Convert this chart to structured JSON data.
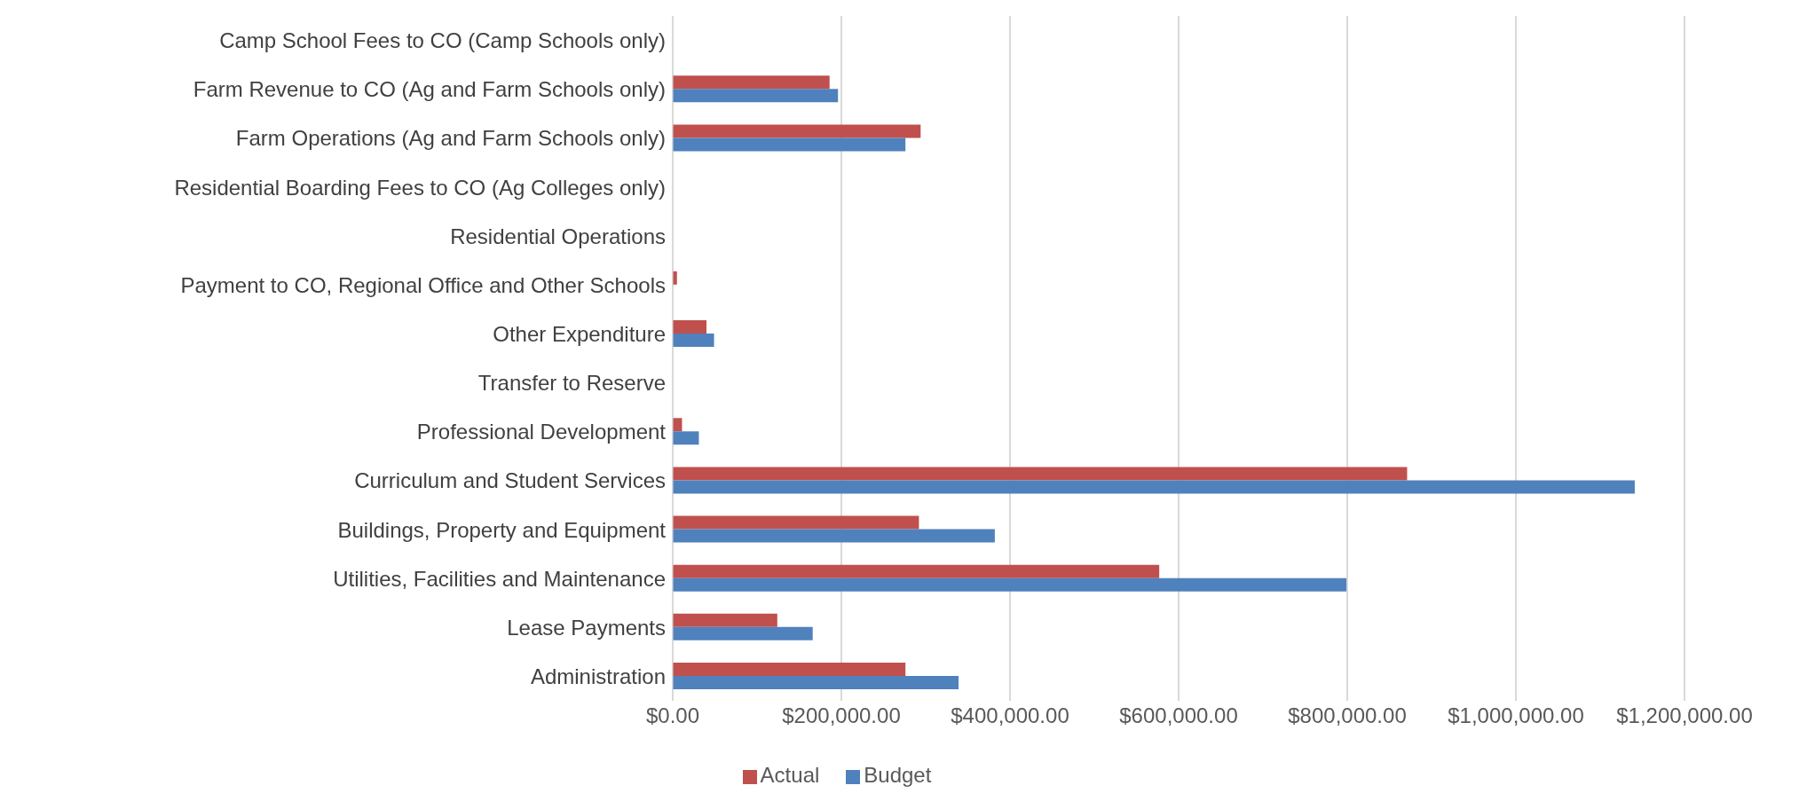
{
  "chart_data": {
    "type": "bar",
    "orientation": "horizontal",
    "categories": [
      "Camp School Fees to CO (Camp Schools only)",
      "Farm Revenue to CO (Ag and Farm Schools only)",
      "Farm Operations (Ag and Farm Schools only)",
      "Residential Boarding Fees to CO (Ag Colleges only)",
      "Residential Operations",
      "Payment to CO, Regional Office and Other Schools",
      "Other Expenditure",
      "Transfer to Reserve",
      "Professional Development",
      "Curriculum and Student Services",
      "Buildings, Property and Equipment",
      "Utilities, Facilities and Maintenance",
      "Lease Payments",
      "Administration"
    ],
    "series": [
      {
        "name": "Actual",
        "color": "#c0504d",
        "values": [
          null,
          186000,
          294000,
          null,
          null,
          5000,
          40000,
          null,
          11000,
          871000,
          292000,
          577000,
          124000,
          276000
        ]
      },
      {
        "name": "Budget",
        "color": "#4f81bd",
        "values": [
          null,
          196000,
          276000,
          null,
          null,
          null,
          49000,
          null,
          31000,
          1141000,
          382000,
          799000,
          166000,
          339000
        ]
      }
    ],
    "xlim": [
      0,
      1200000
    ],
    "xticks": [
      {
        "value": 0,
        "label": "$0.00"
      },
      {
        "value": 200000,
        "label": "$200,000.00"
      },
      {
        "value": 400000,
        "label": "$400,000.00"
      },
      {
        "value": 600000,
        "label": "$600,000.00"
      },
      {
        "value": 800000,
        "label": "$800,000.00"
      },
      {
        "value": 1000000,
        "label": "$1,000,000.00"
      },
      {
        "value": 1200000,
        "label": "$1,200,000.00"
      }
    ],
    "grid": "x",
    "legend": "bottom"
  }
}
